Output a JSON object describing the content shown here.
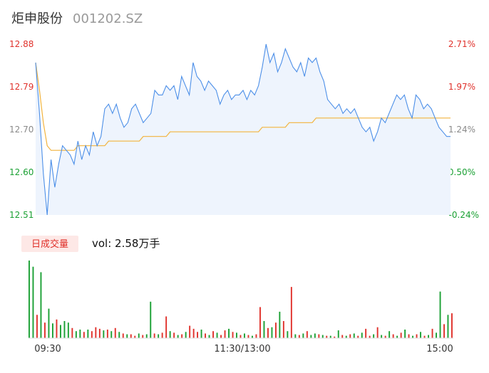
{
  "header": {
    "name": "炬申股份",
    "code": "001202.SZ"
  },
  "colors": {
    "up": "#e0312b",
    "down": "#1aa033",
    "neutral": "#8a8a8a",
    "price_line": "#4c8fe8",
    "avg_line": "#f2b33d",
    "area_fill": "#eef4fd",
    "tab_bg": "#fde8e6"
  },
  "volume_panel": {
    "tab_label": "日成交量",
    "vol_text": "vol: 2.58万手"
  },
  "chart_data": {
    "type": "line",
    "title": "",
    "y_left_ticks": [
      "12.88",
      "12.79",
      "12.70",
      "12.60",
      "12.51"
    ],
    "y_right_ticks": [
      "2.71%",
      "1.97%",
      "1.24%",
      "0.50%",
      "-0.24%"
    ],
    "ylim": [
      12.51,
      12.88
    ],
    "x_ticks": [
      "09:30",
      "11:30/13:00",
      "15:00"
    ],
    "price": [
      12.84,
      12.73,
      12.6,
      12.51,
      12.63,
      12.57,
      12.62,
      12.66,
      12.65,
      12.64,
      12.62,
      12.67,
      12.63,
      12.66,
      12.64,
      12.69,
      12.66,
      12.68,
      12.74,
      12.75,
      12.73,
      12.75,
      12.72,
      12.7,
      12.71,
      12.74,
      12.75,
      12.73,
      12.71,
      12.72,
      12.73,
      12.78,
      12.77,
      12.77,
      12.79,
      12.78,
      12.79,
      12.76,
      12.81,
      12.79,
      12.77,
      12.84,
      12.81,
      12.8,
      12.78,
      12.8,
      12.79,
      12.78,
      12.75,
      12.77,
      12.78,
      12.76,
      12.77,
      12.77,
      12.78,
      12.76,
      12.78,
      12.77,
      12.79,
      12.83,
      12.88,
      12.84,
      12.86,
      12.82,
      12.84,
      12.87,
      12.85,
      12.83,
      12.82,
      12.84,
      12.81,
      12.85,
      12.84,
      12.85,
      12.82,
      12.8,
      12.76,
      12.75,
      12.74,
      12.75,
      12.73,
      12.74,
      12.73,
      12.74,
      12.72,
      12.7,
      12.69,
      12.7,
      12.67,
      12.69,
      12.72,
      12.71,
      12.73,
      12.75,
      12.77,
      12.76,
      12.77,
      12.74,
      12.72,
      12.77,
      12.76,
      12.74,
      12.75,
      12.74,
      12.72,
      12.7,
      12.69,
      12.68,
      12.68
    ],
    "avg_price": [
      12.84,
      12.78,
      12.71,
      12.66,
      12.65,
      12.65,
      12.65,
      12.65,
      12.65,
      12.65,
      12.65,
      12.66,
      12.66,
      12.66,
      12.66,
      12.66,
      12.66,
      12.66,
      12.66,
      12.67,
      12.67,
      12.67,
      12.67,
      12.67,
      12.67,
      12.67,
      12.67,
      12.67,
      12.68,
      12.68,
      12.68,
      12.68,
      12.68,
      12.68,
      12.68,
      12.69,
      12.69,
      12.69,
      12.69,
      12.69,
      12.69,
      12.69,
      12.69,
      12.69,
      12.69,
      12.69,
      12.69,
      12.69,
      12.69,
      12.69,
      12.69,
      12.69,
      12.69,
      12.69,
      12.69,
      12.69,
      12.69,
      12.69,
      12.69,
      12.7,
      12.7,
      12.7,
      12.7,
      12.7,
      12.7,
      12.7,
      12.71,
      12.71,
      12.71,
      12.71,
      12.71,
      12.71,
      12.71,
      12.72,
      12.72,
      12.72,
      12.72,
      12.72,
      12.72,
      12.72,
      12.72,
      12.72,
      12.72,
      12.72,
      12.72,
      12.72,
      12.72,
      12.72,
      12.72,
      12.72,
      12.72,
      12.72,
      12.72,
      12.72,
      12.72,
      12.72,
      12.72,
      12.72,
      12.72,
      12.72,
      12.72,
      12.72,
      12.72,
      12.72,
      12.72,
      12.72,
      12.72,
      12.72,
      12.72
    ],
    "volume": [
      100,
      92,
      30,
      85,
      20,
      38,
      19,
      24,
      17,
      22,
      20,
      13,
      9,
      11,
      8,
      11,
      9,
      14,
      12,
      10,
      11,
      9,
      13,
      8,
      6,
      5,
      5,
      3,
      6,
      4,
      5,
      47,
      6,
      5,
      7,
      28,
      9,
      7,
      4,
      5,
      8,
      16,
      12,
      8,
      11,
      6,
      4,
      9,
      7,
      4,
      10,
      12,
      8,
      7,
      4,
      6,
      4,
      3,
      5,
      40,
      22,
      13,
      14,
      20,
      34,
      22,
      9,
      66,
      5,
      4,
      6,
      9,
      4,
      6,
      5,
      4,
      3,
      3,
      2,
      10,
      4,
      3,
      5,
      6,
      3,
      7,
      12,
      3,
      5,
      14,
      4,
      3,
      9,
      5,
      3,
      7,
      11,
      5,
      3,
      5,
      8,
      3,
      4,
      12,
      7,
      60,
      18,
      30,
      32
    ],
    "volume_dir": [
      "down",
      "down",
      "up",
      "down",
      "up",
      "down",
      "down",
      "up",
      "down",
      "down",
      "down",
      "up",
      "down",
      "down",
      "up",
      "down",
      "up",
      "up",
      "up",
      "down",
      "up",
      "down",
      "up",
      "down",
      "up",
      "down",
      "up",
      "up",
      "down",
      "up",
      "down",
      "down",
      "up",
      "down",
      "up",
      "up",
      "down",
      "up",
      "down",
      "up",
      "down",
      "up",
      "up",
      "up",
      "down",
      "up",
      "down",
      "up",
      "down",
      "up",
      "up",
      "down",
      "up",
      "down",
      "up",
      "down",
      "up",
      "down",
      "up",
      "up",
      "down",
      "up",
      "down",
      "up",
      "down",
      "up",
      "down",
      "up",
      "down",
      "up",
      "down",
      "up",
      "down",
      "down",
      "up",
      "down",
      "up",
      "down",
      "up",
      "down",
      "up",
      "down",
      "up",
      "down",
      "up",
      "down",
      "up",
      "up",
      "down",
      "up",
      "down",
      "up",
      "down",
      "up",
      "down",
      "up",
      "down",
      "up",
      "down",
      "up",
      "down",
      "up",
      "down",
      "up",
      "down",
      "down",
      "up",
      "down",
      "up"
    ]
  }
}
